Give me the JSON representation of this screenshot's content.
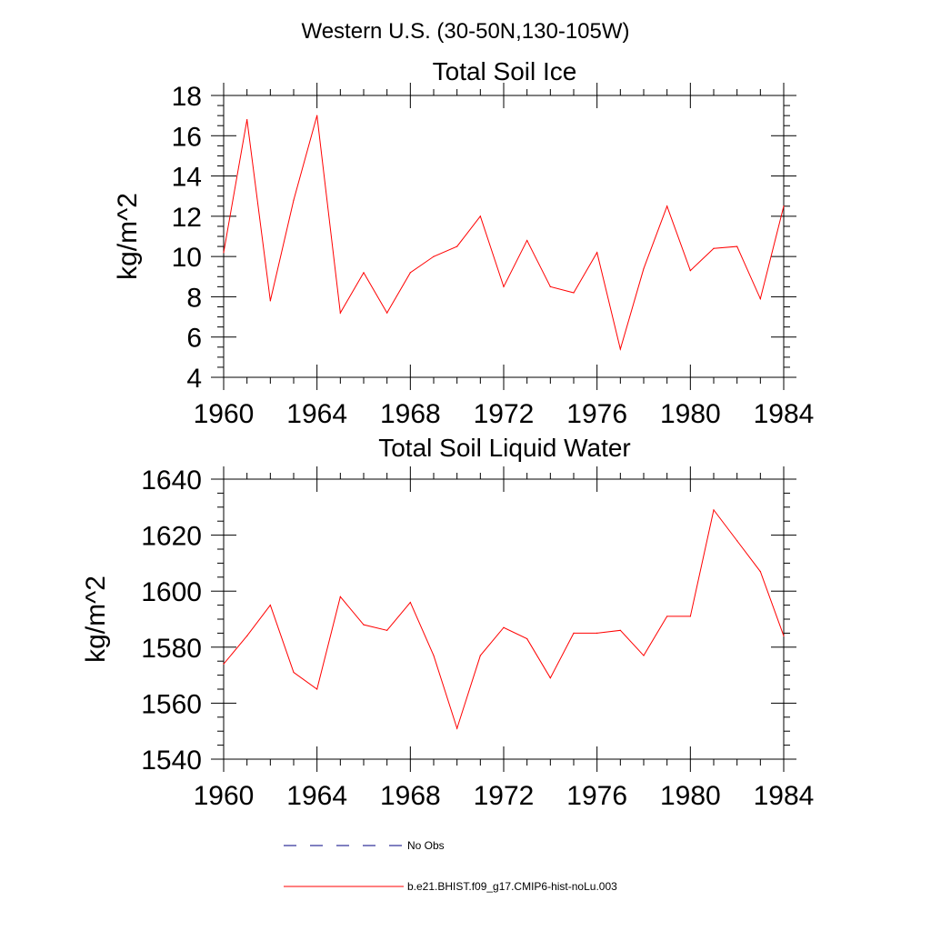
{
  "suptitle": "Western U.S. (30-50N,130-105W)",
  "colors": {
    "model": "#ff0000",
    "obs": "#000080"
  },
  "legend": {
    "placement": "bottom-left",
    "entries": [
      {
        "label": "No Obs",
        "style": "dashed",
        "color": "#000080"
      },
      {
        "label": "b.e21.BHIST.f09_g17.CMIP6-hist-noLu.003",
        "style": "solid",
        "color": "#ff0000"
      }
    ]
  },
  "chart_data": [
    {
      "type": "line",
      "title": "Total Soil Ice",
      "xlabel": "",
      "ylabel": "kg/m^2",
      "xlim": [
        1960,
        1984
      ],
      "ylim": [
        4,
        18
      ],
      "xticks": [
        1960,
        1964,
        1968,
        1972,
        1976,
        1980,
        1984
      ],
      "yticks": [
        4,
        6,
        8,
        10,
        12,
        14,
        16,
        18
      ],
      "grid": false,
      "x": [
        1960,
        1961,
        1962,
        1963,
        1964,
        1965,
        1966,
        1967,
        1968,
        1969,
        1970,
        1971,
        1972,
        1973,
        1974,
        1975,
        1976,
        1977,
        1978,
        1979,
        1980,
        1981,
        1982,
        1983,
        1984
      ],
      "series": [
        {
          "name": "b.e21.BHIST.f09_g17.CMIP6-hist-noLu.003",
          "values": [
            10.2,
            16.8,
            7.8,
            12.8,
            17.0,
            7.2,
            9.2,
            7.2,
            9.2,
            10.0,
            10.5,
            12.0,
            8.5,
            10.8,
            8.5,
            8.2,
            10.2,
            5.4,
            9.4,
            12.5,
            9.3,
            10.4,
            10.5,
            7.9,
            12.5
          ]
        }
      ]
    },
    {
      "type": "line",
      "title": "Total Soil Liquid Water",
      "xlabel": "",
      "ylabel": "kg/m^2",
      "xlim": [
        1960,
        1984
      ],
      "ylim": [
        1540,
        1640
      ],
      "xticks": [
        1960,
        1964,
        1968,
        1972,
        1976,
        1980,
        1984
      ],
      "yticks": [
        1540,
        1560,
        1580,
        1600,
        1620,
        1640
      ],
      "grid": false,
      "x": [
        1960,
        1961,
        1962,
        1963,
        1964,
        1965,
        1966,
        1967,
        1968,
        1969,
        1970,
        1971,
        1972,
        1973,
        1974,
        1975,
        1976,
        1977,
        1978,
        1979,
        1980,
        1981,
        1982,
        1983,
        1984
      ],
      "series": [
        {
          "name": "b.e21.BHIST.f09_g17.CMIP6-hist-noLu.003",
          "values": [
            1574,
            1584,
            1595,
            1571,
            1565,
            1598,
            1588,
            1586,
            1596,
            1577,
            1551,
            1577,
            1587,
            1583,
            1569,
            1585,
            1585,
            1586,
            1577,
            1591,
            1591,
            1629,
            1618,
            1607,
            1584
          ]
        }
      ]
    }
  ]
}
